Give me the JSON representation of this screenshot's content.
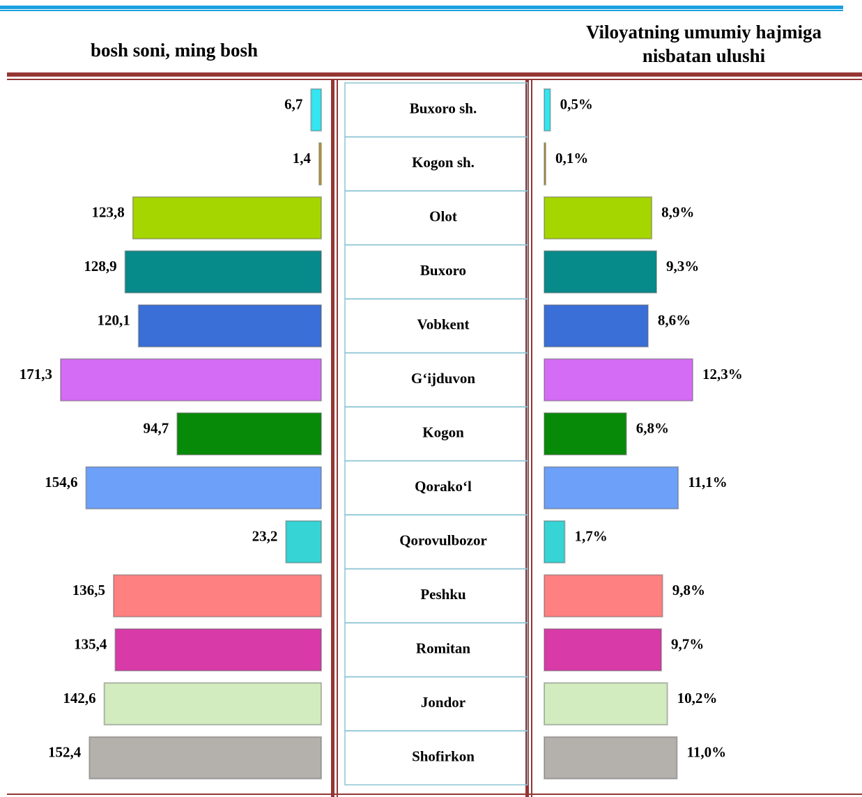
{
  "chart_data": {
    "type": "bar",
    "categories": [
      "Buxoro sh.",
      "Kogon sh.",
      "Olot",
      "Buxoro",
      "Vobkent",
      "G‘ijduvon",
      "Kogon",
      "Qorako‘l",
      "Qorovulbozor",
      "Peshku",
      "Romitan",
      "Jondor",
      "Shofirkon"
    ],
    "colors": [
      "#33e6f0",
      "#c8a028",
      "#a6d600",
      "#078a8a",
      "#3a6fd8",
      "#d46cf5",
      "#078a07",
      "#6da0f8",
      "#36d4d4",
      "#ff8080",
      "#d83aa8",
      "#d2ecc0",
      "#b4b0ac"
    ],
    "series": [
      {
        "name": "bosh soni, ming bosh",
        "values": [
          6.7,
          1.4,
          123.8,
          128.9,
          120.1,
          171.3,
          94.7,
          154.6,
          23.2,
          136.5,
          135.4,
          142.6,
          152.4
        ],
        "value_labels": [
          "6,7",
          "1,4",
          "123,8",
          "128,9",
          "120,1",
          "171,3",
          "94,7",
          "154,6",
          "23,2",
          "136,5",
          "135,4",
          "142,6",
          "152,4"
        ]
      },
      {
        "name": "Viloyatning umumiy hajmiga nisbatan ulushi",
        "values": [
          0.5,
          0.1,
          8.9,
          9.3,
          8.6,
          12.3,
          6.8,
          11.1,
          1.7,
          9.8,
          9.7,
          10.2,
          11.0
        ],
        "value_labels": [
          "0,5%",
          "0,1%",
          "8,9%",
          "9,3%",
          "8,6%",
          "12,3%",
          "6,8%",
          "11,1%",
          "1,7%",
          "9,8%",
          "9,7%",
          "10,2%",
          "11,0%"
        ]
      }
    ]
  }
}
